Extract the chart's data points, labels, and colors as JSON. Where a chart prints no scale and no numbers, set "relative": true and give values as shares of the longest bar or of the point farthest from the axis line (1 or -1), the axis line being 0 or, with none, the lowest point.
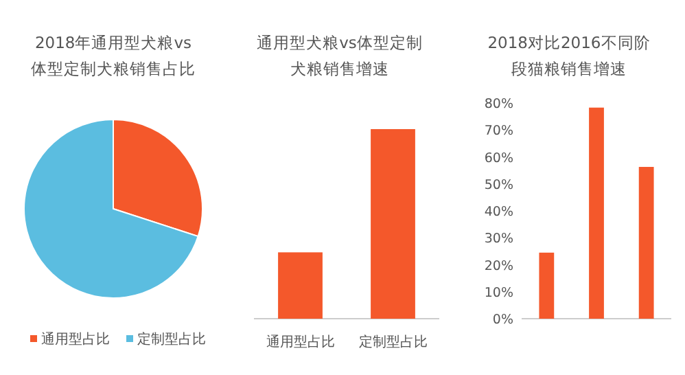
{
  "chart_data": [
    {
      "type": "pie",
      "title": "2018年通用型犬粮vs体型定制犬粮销售占比",
      "categories": [
        "通用型占比",
        "定制型占比"
      ],
      "values": [
        30,
        70
      ],
      "colors": [
        "#f4582b",
        "#5bbde0"
      ],
      "legend": "bottom"
    },
    {
      "type": "bar",
      "title": "通用型犬粮vs体型定制犬粮销售增速",
      "categories": [
        "通用型占比",
        "定制型占比"
      ],
      "values": [
        0.35,
        1
      ],
      "color": "#f4582b",
      "relative": true
    },
    {
      "type": "bar",
      "title": "2018对比2016不同阶段猫粮销售增速",
      "categories": [
        null,
        null,
        null
      ],
      "values": [
        24.5,
        78.3,
        56.3
      ],
      "color": "#f4582b",
      "ylim": [
        0,
        80
      ],
      "yticks": [
        {
          "value": 0,
          "label": "0%"
        },
        {
          "value": 10,
          "label": "10%"
        },
        {
          "value": 20,
          "label": "20%"
        },
        {
          "value": 30,
          "label": "30%"
        },
        {
          "value": 40,
          "label": "40%"
        },
        {
          "value": 50,
          "label": "50%"
        },
        {
          "value": 60,
          "label": "60%"
        },
        {
          "value": 70,
          "label": "70%"
        },
        {
          "value": 80,
          "label": "80%"
        }
      ]
    }
  ]
}
